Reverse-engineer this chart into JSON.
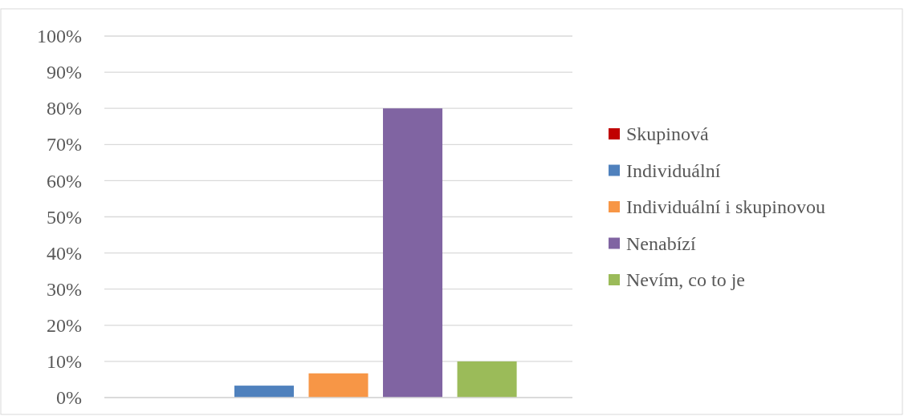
{
  "chart_data": {
    "type": "bar",
    "categories": [
      null
    ],
    "series": [
      {
        "name": "Skupinová",
        "color": "#c00000",
        "values": [
          0
        ]
      },
      {
        "name": "Individuální",
        "color": "#4f81bd",
        "values": [
          3.3
        ]
      },
      {
        "name": "Individuální i skupinovou",
        "color": "#f79646",
        "values": [
          6.7
        ]
      },
      {
        "name": "Nenabízí",
        "color": "#8064a2",
        "values": [
          80
        ]
      },
      {
        "name": "Nevím, co to je",
        "color": "#9bbb59",
        "values": [
          10
        ]
      }
    ],
    "ylim": [
      0,
      100
    ],
    "yticks": [
      {
        "value": 0,
        "label": "0%"
      },
      {
        "value": 10,
        "label": "10%"
      },
      {
        "value": 20,
        "label": "20%"
      },
      {
        "value": 30,
        "label": "30%"
      },
      {
        "value": 40,
        "label": "40%"
      },
      {
        "value": 50,
        "label": "50%"
      },
      {
        "value": 60,
        "label": "60%"
      },
      {
        "value": 70,
        "label": "70%"
      },
      {
        "value": 80,
        "label": "80%"
      },
      {
        "value": 90,
        "label": "90%"
      },
      {
        "value": 100,
        "label": "100%"
      }
    ],
    "grid": "y",
    "legend": "right"
  }
}
